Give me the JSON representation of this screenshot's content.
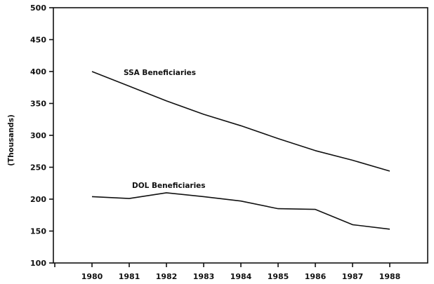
{
  "chart_data": {
    "type": "line",
    "title": "",
    "xlabel": "",
    "ylabel": "(Thousands)",
    "x": [
      1980,
      1981,
      1982,
      1983,
      1984,
      1985,
      1986,
      1987,
      1988
    ],
    "categories": [
      "1980",
      "1981",
      "1982",
      "1983",
      "1984",
      "1985",
      "1986",
      "1987",
      "1988"
    ],
    "series": [
      {
        "name": "SSA Beneficiaries",
        "values": [
          400,
          377,
          354,
          333,
          315,
          295,
          276,
          261,
          244
        ]
      },
      {
        "name": "DOL Beneficiaries",
        "values": [
          204,
          201,
          210,
          204,
          197,
          185,
          184,
          160,
          153
        ]
      }
    ],
    "ylim": [
      100,
      500
    ],
    "yticks": [
      100,
      150,
      200,
      250,
      300,
      350,
      400,
      450,
      500
    ],
    "grid": false,
    "legend": "inline labels near lines"
  },
  "labels": {
    "ylabel": "(Thousands)",
    "ssa": "SSA Beneficiaries",
    "dol": "DOL Beneficiaries"
  }
}
